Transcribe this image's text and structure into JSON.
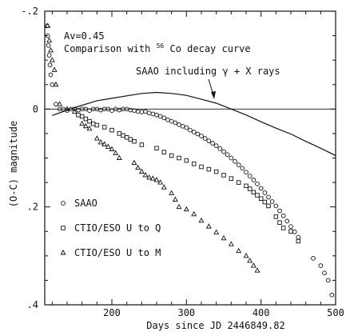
{
  "chart_data": {
    "type": "scatter",
    "xlabel": "Days since JD 2446849.82",
    "ylabel": "(O-C) magnitude",
    "xlim": [
      110,
      500
    ],
    "ylim": [
      -0.2,
      0.4
    ],
    "y_inverted": true,
    "x_ticks": [
      200,
      300,
      400,
      500
    ],
    "y_ticks": [
      -0.2,
      0,
      0.2,
      0.4
    ],
    "y_tick_labels": [
      "-.2",
      "0",
      ".2",
      ".4"
    ],
    "x_tick_labels": [
      "200",
      "300",
      "400",
      "500"
    ],
    "reference_line_y": 0,
    "annotations": {
      "av": "Av=0.45",
      "comparison_prefix": "Comparison with ",
      "isotope_mass": "56",
      "comparison_suffix": "Co decay curve",
      "curve_label": "SAAO including γ + X rays"
    },
    "legend": {
      "placement": "bottom-left",
      "items": [
        {
          "symbol": "circle",
          "label": "SAAO"
        },
        {
          "symbol": "square",
          "label": "CTIO/ESO U to Q"
        },
        {
          "symbol": "triangle",
          "label": "CTIO/ESO U to M"
        }
      ]
    },
    "curve": {
      "x": [
        120,
        150,
        180,
        200,
        220,
        240,
        260,
        280,
        300,
        320,
        340,
        360,
        380,
        400,
        420,
        440,
        460,
        480,
        500
      ],
      "y": [
        0.013,
        -0.003,
        -0.017,
        -0.022,
        -0.027,
        -0.032,
        -0.034,
        -0.032,
        -0.028,
        -0.02,
        -0.012,
        0.0,
        0.012,
        0.026,
        0.039,
        0.051,
        0.066,
        0.08,
        0.095
      ]
    },
    "series": [
      {
        "name": "SAAO",
        "marker": "circle",
        "x": [
          113,
          114,
          115,
          116,
          117,
          118,
          120,
          125,
          130,
          135,
          140,
          145,
          150,
          155,
          160,
          165,
          170,
          175,
          180,
          185,
          190,
          195,
          200,
          205,
          210,
          215,
          220,
          225,
          230,
          235,
          240,
          245,
          250,
          255,
          260,
          265,
          270,
          275,
          280,
          285,
          290,
          295,
          300,
          305,
          310,
          315,
          320,
          325,
          330,
          335,
          340,
          345,
          350,
          355,
          360,
          365,
          370,
          375,
          380,
          385,
          390,
          395,
          400,
          405,
          410,
          415,
          420,
          425,
          430,
          435,
          440,
          445,
          450,
          470,
          480,
          485,
          490,
          495
        ],
        "y": [
          -0.17,
          -0.15,
          -0.13,
          -0.11,
          -0.09,
          -0.07,
          -0.05,
          -0.01,
          0.0,
          0.0,
          0.003,
          0.0,
          0.0,
          0.002,
          0.0,
          0.0,
          0.003,
          0.0,
          0.0,
          0.002,
          0.0,
          0.0,
          0.003,
          0.0,
          0.002,
          0.0,
          0.0,
          0.002,
          0.003,
          0.005,
          0.006,
          0.005,
          0.008,
          0.01,
          0.012,
          0.015,
          0.018,
          0.022,
          0.025,
          0.028,
          0.032,
          0.035,
          0.038,
          0.043,
          0.047,
          0.051,
          0.055,
          0.06,
          0.065,
          0.07,
          0.075,
          0.081,
          0.087,
          0.093,
          0.1,
          0.107,
          0.114,
          0.121,
          0.129,
          0.137,
          0.145,
          0.153,
          0.162,
          0.171,
          0.18,
          0.189,
          0.198,
          0.208,
          0.218,
          0.229,
          0.24,
          0.251,
          0.262,
          0.305,
          0.32,
          0.335,
          0.35,
          0.38
        ]
      },
      {
        "name": "CTIO/ESO U to Q",
        "marker": "square",
        "x": [
          155,
          160,
          165,
          170,
          175,
          180,
          190,
          200,
          210,
          215,
          220,
          225,
          230,
          240,
          260,
          270,
          280,
          290,
          300,
          310,
          320,
          330,
          340,
          350,
          360,
          370,
          380,
          385,
          390,
          395,
          400,
          405,
          410,
          420,
          425,
          430,
          440,
          450
        ],
        "y": [
          0.012,
          0.015,
          0.02,
          0.025,
          0.03,
          0.033,
          0.037,
          0.043,
          0.05,
          0.054,
          0.058,
          0.062,
          0.066,
          0.073,
          0.08,
          0.088,
          0.095,
          0.1,
          0.105,
          0.112,
          0.118,
          0.123,
          0.128,
          0.135,
          0.142,
          0.15,
          0.157,
          0.163,
          0.17,
          0.176,
          0.183,
          0.19,
          0.198,
          0.22,
          0.232,
          0.243,
          0.25,
          0.27
        ]
      },
      {
        "name": "CTIO/ESO U to M",
        "marker": "triangle",
        "x": [
          114,
          116,
          118,
          120,
          123,
          125,
          130,
          140,
          150,
          160,
          165,
          170,
          180,
          185,
          190,
          195,
          200,
          205,
          210,
          230,
          235,
          240,
          245,
          250,
          255,
          260,
          265,
          270,
          280,
          285,
          290,
          300,
          310,
          320,
          330,
          340,
          350,
          360,
          370,
          380,
          385,
          390,
          395
        ],
        "y": [
          -0.17,
          -0.14,
          -0.12,
          -0.1,
          -0.08,
          -0.05,
          -0.01,
          0.0,
          0.005,
          0.03,
          0.035,
          0.04,
          0.06,
          0.068,
          0.072,
          0.077,
          0.082,
          0.09,
          0.1,
          0.11,
          0.12,
          0.128,
          0.135,
          0.14,
          0.142,
          0.145,
          0.15,
          0.16,
          0.172,
          0.185,
          0.2,
          0.205,
          0.215,
          0.228,
          0.24,
          0.252,
          0.264,
          0.276,
          0.29,
          0.3,
          0.31,
          0.32,
          0.33
        ]
      }
    ]
  }
}
